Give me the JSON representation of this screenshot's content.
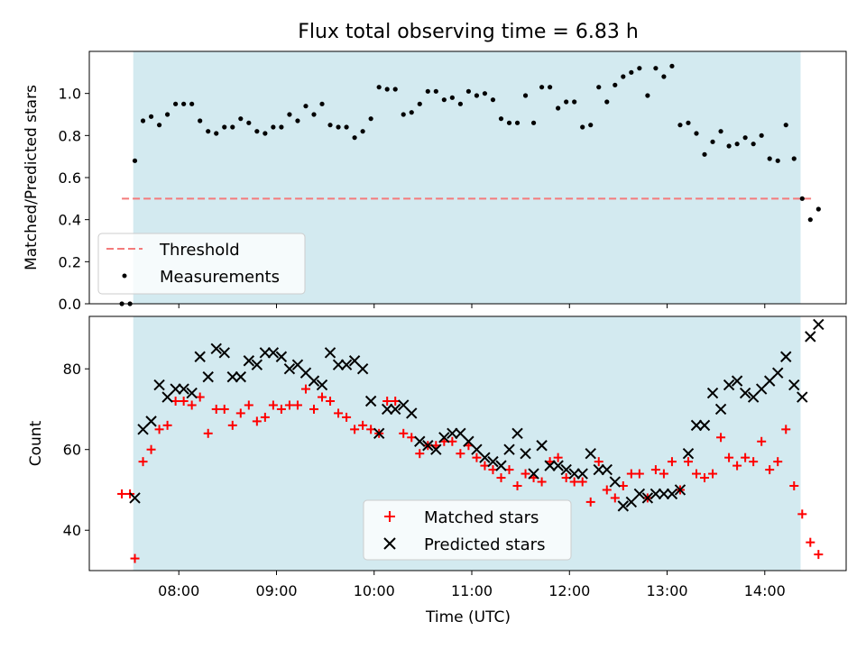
{
  "chart_data": [
    {
      "type": "scatter",
      "title": "Flux total observing time = 6.83 h",
      "xlabel": "",
      "ylabel": "Matched/Predicted stars",
      "xlim": [
        "07:05",
        "14:50"
      ],
      "ylim": [
        0,
        1.2
      ],
      "yticks": [
        "0.0",
        "0.2",
        "0.4",
        "0.6",
        "0.8",
        "1.0"
      ],
      "shaded_span": [
        "07:32",
        "14:22"
      ],
      "shaded_color": "#d3eaf0",
      "legend": {
        "position": "lower-left",
        "entries": [
          "Threshold",
          "Measurements"
        ]
      },
      "threshold": {
        "name": "Threshold",
        "value": 0.5,
        "x_range": [
          "07:25",
          "14:30"
        ],
        "color": "#f47b7b"
      },
      "series": [
        {
          "name": "Measurements",
          "color": "#000000",
          "x": [
            "07:25",
            "07:30",
            "07:33",
            "07:38",
            "07:43",
            "07:48",
            "07:53",
            "07:58",
            "08:03",
            "08:08",
            "08:13",
            "08:18",
            "08:23",
            "08:28",
            "08:33",
            "08:38",
            "08:43",
            "08:48",
            "08:53",
            "08:58",
            "09:03",
            "09:08",
            "09:13",
            "09:18",
            "09:23",
            "09:28",
            "09:33",
            "09:38",
            "09:43",
            "09:48",
            "09:53",
            "09:58",
            "10:03",
            "10:08",
            "10:13",
            "10:18",
            "10:23",
            "10:28",
            "10:33",
            "10:38",
            "10:43",
            "10:48",
            "10:53",
            "10:58",
            "11:03",
            "11:08",
            "11:13",
            "11:18",
            "11:23",
            "11:28",
            "11:33",
            "11:38",
            "11:43",
            "11:48",
            "11:53",
            "11:58",
            "12:03",
            "12:08",
            "12:13",
            "12:18",
            "12:23",
            "12:28",
            "12:33",
            "12:38",
            "12:43",
            "12:48",
            "12:53",
            "12:58",
            "13:03",
            "13:08",
            "13:13",
            "13:18",
            "13:23",
            "13:28",
            "13:33",
            "13:38",
            "13:43",
            "13:48",
            "13:53",
            "13:58",
            "14:03",
            "14:08",
            "14:13",
            "14:18",
            "14:23",
            "14:28",
            "14:33"
          ],
          "y": [
            0.0,
            0.0,
            0.68,
            0.87,
            0.89,
            0.85,
            0.9,
            0.95,
            0.95,
            0.95,
            0.87,
            0.82,
            0.81,
            0.84,
            0.84,
            0.88,
            0.86,
            0.82,
            0.81,
            0.84,
            0.84,
            0.9,
            0.87,
            0.94,
            0.9,
            0.95,
            0.85,
            0.84,
            0.84,
            0.79,
            0.82,
            0.88,
            1.03,
            1.02,
            1.02,
            0.9,
            0.91,
            0.95,
            1.01,
            1.01,
            0.97,
            0.98,
            0.95,
            1.01,
            0.99,
            1.0,
            0.97,
            0.88,
            0.86,
            0.86,
            0.99,
            0.86,
            1.03,
            1.03,
            0.93,
            0.96,
            0.96,
            0.84,
            0.85,
            1.03,
            0.96,
            1.04,
            1.08,
            1.1,
            1.12,
            0.99,
            1.12,
            1.08,
            1.13,
            0.85,
            0.86,
            0.81,
            0.71,
            0.77,
            0.82,
            0.75,
            0.76,
            0.79,
            0.76,
            0.8,
            0.69,
            0.68,
            0.85,
            0.69,
            0.5,
            0.4,
            0.45
          ]
        }
      ]
    },
    {
      "type": "scatter",
      "xlabel": "Time (UTC)",
      "ylabel": "Count",
      "xlim": [
        "07:05",
        "14:50"
      ],
      "ylim": [
        30,
        93
      ],
      "xticks": [
        "08:00",
        "09:00",
        "10:00",
        "11:00",
        "12:00",
        "13:00",
        "14:00"
      ],
      "yticks": [
        "40",
        "60",
        "80"
      ],
      "shaded_span": [
        "07:32",
        "14:22"
      ],
      "shaded_color": "#d3eaf0",
      "legend": {
        "position": "bottom-center",
        "entries": [
          "Matched stars",
          "Predicted stars"
        ]
      },
      "series": [
        {
          "name": "Matched stars",
          "marker": "plus",
          "color": "#ff0000",
          "x": [
            "07:25",
            "07:30",
            "07:33",
            "07:38",
            "07:43",
            "07:48",
            "07:53",
            "07:58",
            "08:03",
            "08:08",
            "08:13",
            "08:18",
            "08:23",
            "08:28",
            "08:33",
            "08:38",
            "08:43",
            "08:48",
            "08:53",
            "08:58",
            "09:03",
            "09:08",
            "09:13",
            "09:18",
            "09:23",
            "09:28",
            "09:33",
            "09:38",
            "09:43",
            "09:48",
            "09:53",
            "09:58",
            "10:03",
            "10:08",
            "10:13",
            "10:18",
            "10:23",
            "10:28",
            "10:33",
            "10:38",
            "10:43",
            "10:48",
            "10:53",
            "10:58",
            "11:03",
            "11:08",
            "11:13",
            "11:18",
            "11:23",
            "11:28",
            "11:33",
            "11:38",
            "11:43",
            "11:48",
            "11:53",
            "11:58",
            "12:03",
            "12:08",
            "12:13",
            "12:18",
            "12:23",
            "12:28",
            "12:33",
            "12:38",
            "12:43",
            "12:48",
            "12:53",
            "12:58",
            "13:03",
            "13:08",
            "13:13",
            "13:18",
            "13:23",
            "13:28",
            "13:33",
            "13:38",
            "13:43",
            "13:48",
            "13:53",
            "13:58",
            "14:03",
            "14:08",
            "14:13",
            "14:18",
            "14:23",
            "14:28",
            "14:33"
          ],
          "y": [
            49,
            49,
            33,
            57,
            60,
            65,
            66,
            72,
            72,
            71,
            73,
            64,
            70,
            70,
            66,
            69,
            71,
            67,
            68,
            71,
            70,
            71,
            71,
            75,
            70,
            73,
            72,
            69,
            68,
            65,
            66,
            65,
            64,
            72,
            72,
            64,
            63,
            59,
            61,
            61,
            62,
            62,
            59,
            61,
            58,
            56,
            55,
            53,
            55,
            51,
            54,
            53,
            52,
            57,
            58,
            53,
            52,
            52,
            47,
            57,
            50,
            48,
            51,
            54,
            54,
            48,
            55,
            54,
            57,
            50,
            57,
            54,
            53,
            54,
            63,
            58,
            56,
            58,
            57,
            62,
            55,
            57,
            65,
            51,
            44,
            37,
            34
          ]
        },
        {
          "name": "Predicted stars",
          "marker": "x",
          "color": "#000000",
          "x": [
            "07:33",
            "07:38",
            "07:43",
            "07:48",
            "07:53",
            "07:58",
            "08:03",
            "08:08",
            "08:13",
            "08:18",
            "08:23",
            "08:28",
            "08:33",
            "08:38",
            "08:43",
            "08:48",
            "08:53",
            "08:58",
            "09:03",
            "09:08",
            "09:13",
            "09:18",
            "09:23",
            "09:28",
            "09:33",
            "09:38",
            "09:43",
            "09:48",
            "09:53",
            "09:58",
            "10:03",
            "10:08",
            "10:13",
            "10:18",
            "10:23",
            "10:28",
            "10:33",
            "10:38",
            "10:43",
            "10:48",
            "10:53",
            "10:58",
            "11:03",
            "11:08",
            "11:13",
            "11:18",
            "11:23",
            "11:28",
            "11:33",
            "11:38",
            "11:43",
            "11:48",
            "11:53",
            "11:58",
            "12:03",
            "12:08",
            "12:13",
            "12:18",
            "12:23",
            "12:28",
            "12:33",
            "12:38",
            "12:43",
            "12:48",
            "12:53",
            "12:58",
            "13:03",
            "13:08",
            "13:13",
            "13:18",
            "13:23",
            "13:28",
            "13:33",
            "13:38",
            "13:43",
            "13:48",
            "13:53",
            "13:58",
            "14:03",
            "14:08",
            "14:13",
            "14:18",
            "14:23",
            "14:28",
            "14:33"
          ],
          "y": [
            48,
            65,
            67,
            76,
            73,
            75,
            75,
            74,
            83,
            78,
            85,
            84,
            78,
            78,
            82,
            81,
            84,
            84,
            83,
            80,
            81,
            79,
            77,
            76,
            84,
            81,
            81,
            82,
            80,
            72,
            64,
            70,
            70,
            71,
            69,
            62,
            61,
            60,
            63,
            64,
            64,
            62,
            60,
            58,
            57,
            56,
            60,
            64,
            59,
            54,
            61,
            56,
            56,
            55,
            54,
            54,
            59,
            55,
            55,
            52,
            46,
            47,
            49,
            48,
            49,
            49,
            49,
            50,
            59,
            66,
            66,
            74,
            70,
            76,
            77,
            74,
            73,
            75,
            77,
            79,
            83,
            76,
            73,
            88,
            91
          ]
        }
      ]
    }
  ]
}
